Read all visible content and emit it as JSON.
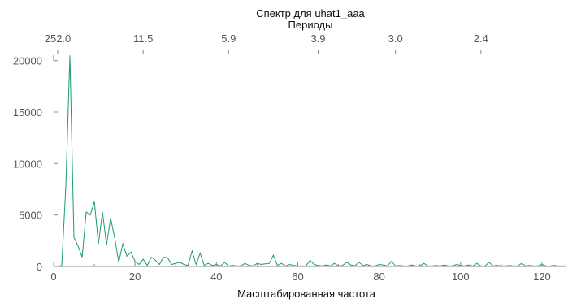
{
  "chart_data": {
    "type": "line",
    "title": "Спектр для uhat1_aaa",
    "top_axis_label": "Периоды",
    "xlabel": "Масштабированная частота",
    "ylabel": "",
    "xlim": [
      0,
      126
    ],
    "ylim": [
      0,
      21000
    ],
    "x_ticks": [
      0,
      20,
      40,
      60,
      80,
      100,
      120
    ],
    "y_ticks": [
      0,
      5000,
      10000,
      15000,
      20000
    ],
    "top_ticks": [
      {
        "x": 1,
        "label": "252.0"
      },
      {
        "x": 22,
        "label": "11.5"
      },
      {
        "x": 43,
        "label": "5.9"
      },
      {
        "x": 65,
        "label": "3.9"
      },
      {
        "x": 84,
        "label": "3.0"
      },
      {
        "x": 105,
        "label": "2.4"
      }
    ],
    "grid": false,
    "line_color": "#1a9a6e",
    "series": [
      {
        "x": [
          1,
          2,
          3,
          4,
          5,
          6,
          7,
          8,
          9,
          10,
          11,
          12,
          13,
          14,
          15,
          16,
          17,
          18,
          19,
          20,
          21,
          22,
          23,
          24,
          25,
          26,
          27,
          28,
          29,
          30,
          31,
          32,
          33,
          34,
          35,
          36,
          37,
          38,
          39,
          40,
          41,
          42,
          43,
          44,
          45,
          46,
          47,
          48,
          49,
          50,
          51,
          52,
          53,
          54,
          55,
          56,
          57,
          58,
          59,
          60,
          61,
          62,
          63,
          64,
          65,
          66,
          67,
          68,
          69,
          70,
          71,
          72,
          73,
          74,
          75,
          76,
          77,
          78,
          79,
          80,
          81,
          82,
          83,
          84,
          85,
          86,
          87,
          88,
          89,
          90,
          91,
          92,
          93,
          94,
          95,
          96,
          97,
          98,
          99,
          100,
          101,
          102,
          103,
          104,
          105,
          106,
          107,
          108,
          109,
          110,
          111,
          112,
          113,
          114,
          115,
          116,
          117,
          118,
          119,
          120,
          121,
          122,
          123,
          124,
          125,
          126
        ],
        "y": [
          50,
          80,
          7800,
          20500,
          2800,
          2000,
          900,
          5300,
          5000,
          6300,
          2200,
          5300,
          2100,
          4700,
          2800,
          400,
          2200,
          1000,
          1400,
          500,
          200,
          700,
          100,
          900,
          600,
          200,
          900,
          850,
          200,
          300,
          400,
          200,
          100,
          1500,
          200,
          1300,
          100,
          300,
          100,
          200,
          50,
          400,
          50,
          100,
          50,
          50,
          300,
          100,
          50,
          300,
          200,
          250,
          300,
          1100,
          100,
          300,
          50,
          200,
          100,
          50,
          50,
          50,
          600,
          200,
          100,
          50,
          150,
          50,
          300,
          50,
          100,
          400,
          150,
          50,
          400,
          100,
          200,
          50,
          50,
          200,
          150,
          50,
          500,
          50,
          100,
          50,
          50,
          150,
          50,
          50,
          300,
          50,
          50,
          100,
          50,
          150,
          50,
          50,
          200,
          100,
          50,
          150,
          50,
          300,
          50,
          50,
          400,
          50,
          100,
          50,
          50,
          100,
          50,
          50,
          300,
          50,
          100,
          50,
          50,
          200,
          50,
          50,
          100,
          50,
          50,
          50
        ]
      }
    ]
  }
}
